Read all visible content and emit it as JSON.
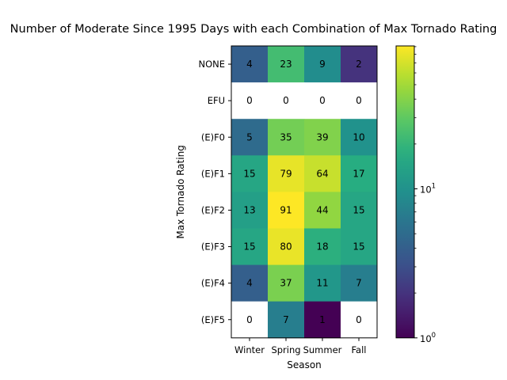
{
  "chart_data": {
    "type": "heatmap",
    "title": "Number of Moderate Since 1995 Days with each Combination of Max Tornado Rating",
    "xlabel": "Season",
    "ylabel": "Max Tornado Rating",
    "x_categories": [
      "Winter",
      "Spring",
      "Summer",
      "Fall"
    ],
    "y_categories": [
      "NONE",
      "EFU",
      "(E)F0",
      "(E)F1",
      "(E)F2",
      "(E)F3",
      "(E)F4",
      "(E)F5"
    ],
    "values": [
      [
        4,
        23,
        9,
        2
      ],
      [
        0,
        0,
        0,
        0
      ],
      [
        5,
        35,
        39,
        10
      ],
      [
        15,
        79,
        64,
        17
      ],
      [
        13,
        91,
        44,
        15
      ],
      [
        15,
        80,
        18,
        15
      ],
      [
        4,
        37,
        11,
        7
      ],
      [
        0,
        7,
        1,
        0
      ]
    ],
    "colorbar": {
      "scale": "log",
      "colormap": "viridis",
      "range": [
        1,
        91
      ],
      "tick_labels": [
        "10^0",
        "10^1"
      ],
      "zero_color": "#ffffff"
    }
  }
}
